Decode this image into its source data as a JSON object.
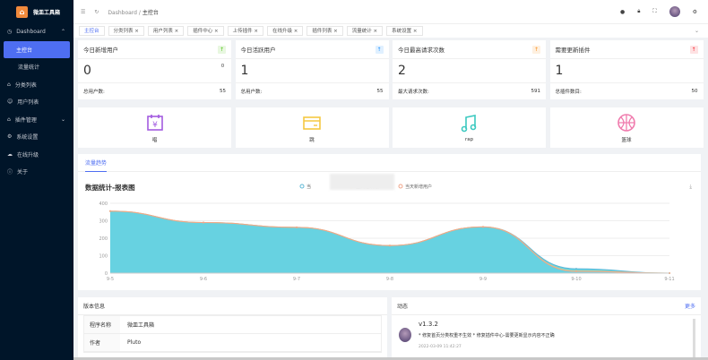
{
  "app": {
    "title": "微皿工具箱",
    "logo_icon": "home-icon"
  },
  "sidebar": {
    "items": [
      {
        "label": "Dashboard",
        "icon": "dashboard-icon",
        "expanded": true
      },
      {
        "label": "主控台",
        "active": true
      },
      {
        "label": "流量统计"
      },
      {
        "label": "分类列表",
        "icon": "category-icon"
      },
      {
        "label": "用户列表",
        "icon": "users-icon"
      },
      {
        "label": "插件管理",
        "icon": "plugin-icon",
        "expandable": true
      },
      {
        "label": "系统设置",
        "icon": "settings-icon"
      },
      {
        "label": "在线升级",
        "icon": "cloud-icon"
      },
      {
        "label": "关于",
        "icon": "info-icon"
      }
    ]
  },
  "header": {
    "breadcrumb": [
      "Dashboard",
      "主控台"
    ]
  },
  "tabs": [
    "主控台",
    "分类列表",
    "用户列表",
    "插件中心",
    "上传插件",
    "在线升级",
    "插件列表",
    "流量统计",
    "系统设置"
  ],
  "stats": [
    {
      "title": "今日新增用户",
      "value": "0",
      "sub": "0",
      "foot_label": "总用户数:",
      "foot_value": "55",
      "color": "#52c41a"
    },
    {
      "title": "今日活跃用户",
      "value": "1",
      "sub": "",
      "foot_label": "总用户数:",
      "foot_value": "55",
      "color": "#1890ff"
    },
    {
      "title": "今日最高请求次数",
      "value": "2",
      "sub": "",
      "foot_label": "最大请求次数:",
      "foot_value": "591",
      "color": "#fa8c16"
    },
    {
      "title": "需要更新插件",
      "value": "1",
      "sub": "",
      "foot_label": "总插件数目:",
      "foot_value": "50",
      "color": "#f5222d"
    }
  ],
  "quick": [
    {
      "label": "唱",
      "icon": "calendar-yen-icon",
      "color": "#a35ce0"
    },
    {
      "label": "跳",
      "icon": "card-icon",
      "color": "#f5c842"
    },
    {
      "label": "rap",
      "icon": "music-icon",
      "color": "#3cc9c0"
    },
    {
      "label": "篮球",
      "icon": "basketball-icon",
      "color": "#f07cae"
    }
  ],
  "traffic_tab": "流量趋势",
  "chart_data": {
    "type": "area",
    "title": "数据统计-报表图",
    "categories": [
      "9-5",
      "9-6",
      "9-7",
      "9-8",
      "9-9",
      "9-10",
      "9-11"
    ],
    "ylim": [
      0,
      400
    ],
    "yticks": [
      0,
      100,
      200,
      300,
      400
    ],
    "series": [
      {
        "name": "当",
        "values": [
          355,
          290,
          262,
          158,
          265,
          25,
          0
        ],
        "color": "#5fb8d6"
      },
      {
        "name": "当天活跃用户",
        "values": [
          355,
          290,
          262,
          158,
          265,
          12,
          0
        ],
        "color": "#f5d76e"
      },
      {
        "name": "当天新增用户",
        "values": [
          355,
          290,
          262,
          158,
          265,
          10,
          0
        ],
        "color": "#f0a58a"
      }
    ],
    "legend": "top-center",
    "grid": true
  },
  "version": {
    "title": "版本信息",
    "rows": [
      {
        "k": "程序名称",
        "v": "微皿工具箱"
      },
      {
        "k": "作者",
        "v": "Pluto"
      }
    ]
  },
  "news": {
    "title": "动态",
    "more": "更多",
    "items": [
      {
        "version": "v1.3.2",
        "text": "* 修复首页分类权重不生效 * 修复插件中心-需要更新显示内容不正确",
        "time": "2022-03-09 11:42:27"
      }
    ]
  }
}
